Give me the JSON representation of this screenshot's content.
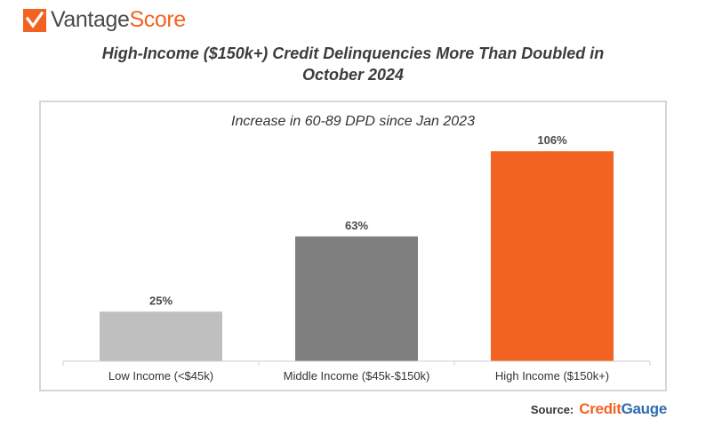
{
  "brand": {
    "name_part1": "Vantage",
    "name_part2": "Score"
  },
  "title_line1": "High-Income ($150k+) Credit Delinquencies More Than Doubled in",
  "title_line2": "October 2024",
  "source": {
    "label": "Source:",
    "brand_part1": "Credit",
    "brand_part2": "Gauge"
  },
  "colors": {
    "low": "#bfbfbf",
    "middle": "#7f7f7f",
    "high": "#f26322",
    "accent": "#f26322"
  },
  "chart_data": {
    "type": "bar",
    "title": "Increase in 60-89 DPD since Jan 2023",
    "categories": [
      "Low Income (<$45k)",
      "Middle Income ($45k-$150k)",
      "High Income ($150k+)"
    ],
    "values": [
      25,
      63,
      106
    ],
    "value_labels": [
      "25%",
      "63%",
      "106%"
    ],
    "ylim": [
      0,
      115
    ],
    "xlabel": "",
    "ylabel": "",
    "grid": false
  }
}
